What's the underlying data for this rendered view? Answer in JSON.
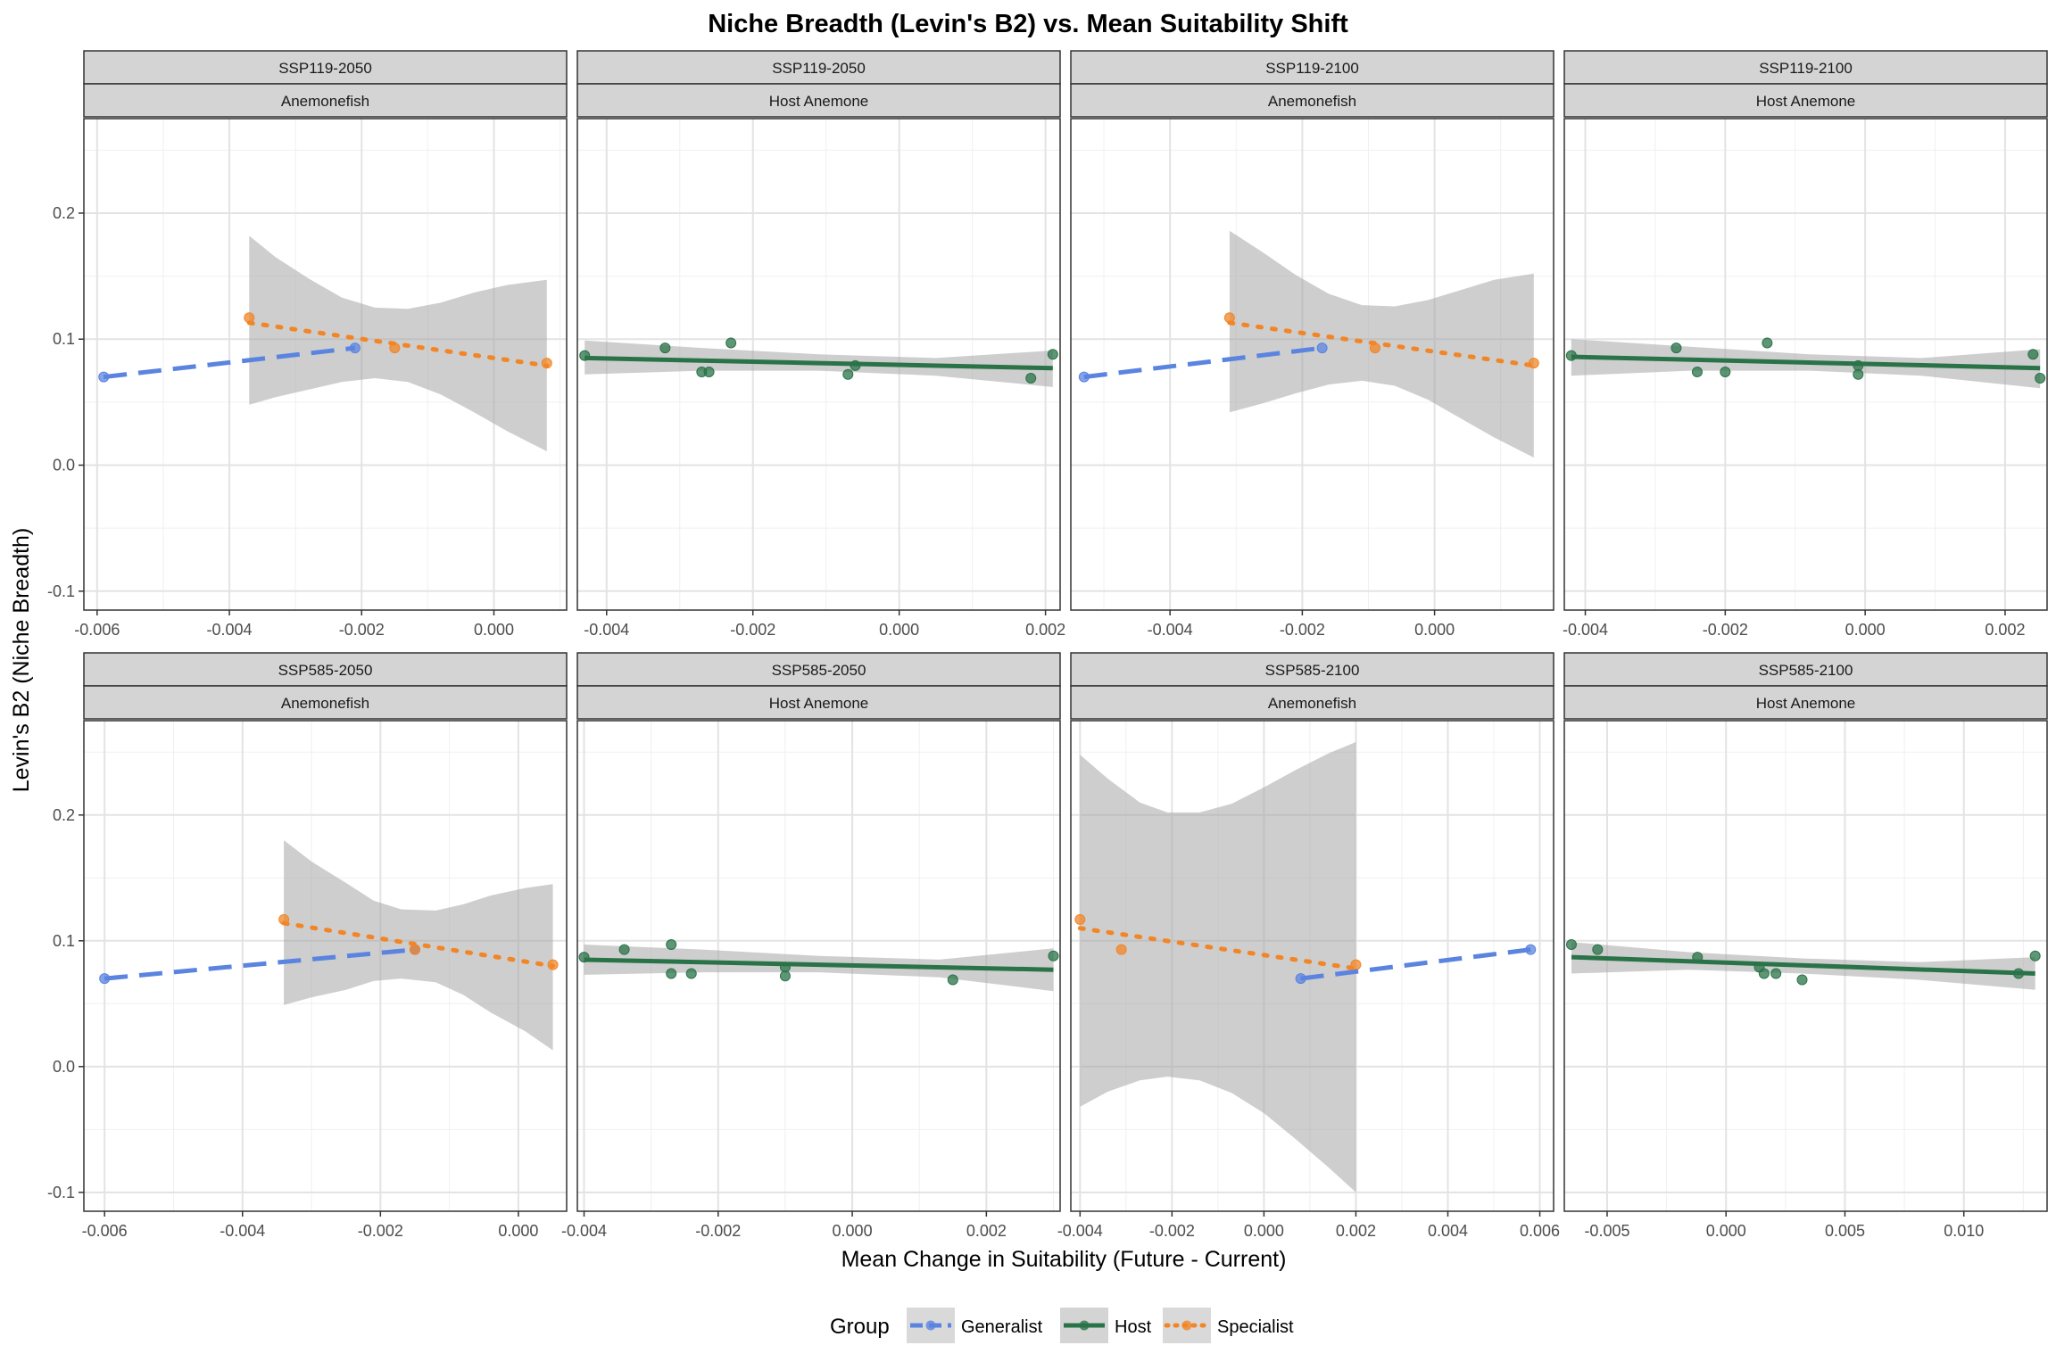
{
  "chart_data": {
    "type": "scatter",
    "title": "Niche Breadth (Levin's B2) vs. Mean Suitability Shift",
    "xlabel": "Mean Change in Suitability (Future - Current)",
    "ylabel": "Levin's B2 (Niche Breadth)",
    "ylim": [
      -0.115,
      0.275
    ],
    "yticks": [
      -0.1,
      0.0,
      0.1,
      0.2
    ],
    "ytick_labels": [
      "-0.1",
      "0.0",
      "0.1",
      "0.2"
    ],
    "grid": true,
    "legend": {
      "title": "Group",
      "position": "bottom",
      "entries": [
        {
          "name": "Generalist",
          "color": "#5b84e0",
          "linestyle": "dashed"
        },
        {
          "name": "Host",
          "color": "#2a7348",
          "linestyle": "solid"
        },
        {
          "name": "Specialist",
          "color": "#f28526",
          "linestyle": "dotted"
        }
      ]
    },
    "colors": {
      "Generalist": "#5b84e0",
      "Host": "#2a7348",
      "Specialist": "#f28526",
      "ribbon": "#a6a6a6",
      "strip": "#d4d4d4"
    },
    "panels": [
      {
        "scenario": "SSP119-2050",
        "group_label": "Anemonefish",
        "xlim": [
          -0.0062,
          0.0011
        ],
        "xticks": [
          -0.006,
          -0.004,
          -0.002,
          0.0
        ],
        "xtick_labels": [
          "-0.006",
          "-0.004",
          "-0.002",
          "0.000"
        ],
        "series": [
          {
            "name": "Generalist",
            "points": [
              [
                -0.0059,
                0.07
              ],
              [
                -0.0021,
                0.093
              ]
            ],
            "fit": [
              [
                -0.0059,
                0.07
              ],
              [
                -0.0021,
                0.093
              ]
            ]
          },
          {
            "name": "Specialist",
            "points": [
              [
                -0.0037,
                0.117
              ],
              [
                -0.0015,
                0.093
              ],
              [
                0.0008,
                0.081
              ]
            ],
            "fit": [
              [
                -0.0037,
                0.113
              ],
              [
                0.0008,
                0.079
              ]
            ],
            "band": {
              "x": [
                -0.0037,
                -0.0033,
                -0.0028,
                -0.0023,
                -0.0018,
                -0.0013,
                -0.0008,
                -0.0003,
                0.0002,
                0.0008
              ],
              "lower": [
                0.048,
                0.054,
                0.06,
                0.066,
                0.069,
                0.066,
                0.056,
                0.042,
                0.027,
                0.011
              ],
              "upper": [
                0.182,
                0.165,
                0.148,
                0.133,
                0.125,
                0.124,
                0.129,
                0.137,
                0.143,
                0.147
              ]
            }
          }
        ]
      },
      {
        "scenario": "SSP119-2050",
        "group_label": "Host Anemone",
        "xlim": [
          -0.0044,
          0.0022
        ],
        "xticks": [
          -0.004,
          -0.002,
          0.0,
          0.002
        ],
        "xtick_labels": [
          "-0.004",
          "-0.002",
          "0.000",
          "0.002"
        ],
        "series": [
          {
            "name": "Host",
            "points": [
              [
                -0.0043,
                0.087
              ],
              [
                -0.0032,
                0.093
              ],
              [
                -0.0027,
                0.074
              ],
              [
                -0.0026,
                0.074
              ],
              [
                -0.0023,
                0.097
              ],
              [
                -0.0007,
                0.072
              ],
              [
                -0.0006,
                0.079
              ],
              [
                0.0018,
                0.069
              ],
              [
                0.0021,
                0.088
              ]
            ],
            "fit": [
              [
                -0.0043,
                0.085
              ],
              [
                0.0021,
                0.077
              ]
            ],
            "band": {
              "x": [
                -0.0043,
                -0.0027,
                -0.0011,
                0.0005,
                0.0021
              ],
              "lower": [
                0.072,
                0.075,
                0.075,
                0.071,
                0.062
              ],
              "upper": [
                0.099,
                0.093,
                0.088,
                0.085,
                0.091
              ]
            }
          }
        ]
      },
      {
        "scenario": "SSP119-2100",
        "group_label": "Anemonefish",
        "xlim": [
          -0.0055,
          0.0018
        ],
        "xticks": [
          -0.004,
          -0.002,
          0.0
        ],
        "xtick_labels": [
          "-0.004",
          "-0.002",
          "0.000"
        ],
        "series": [
          {
            "name": "Generalist",
            "points": [
              [
                -0.0053,
                0.07
              ],
              [
                -0.0017,
                0.093
              ]
            ],
            "fit": [
              [
                -0.0053,
                0.07
              ],
              [
                -0.0017,
                0.093
              ]
            ]
          },
          {
            "name": "Specialist",
            "points": [
              [
                -0.0031,
                0.117
              ],
              [
                -0.0009,
                0.093
              ],
              [
                0.0015,
                0.081
              ]
            ],
            "fit": [
              [
                -0.0031,
                0.113
              ],
              [
                0.0015,
                0.079
              ]
            ],
            "band": {
              "x": [
                -0.0031,
                -0.0026,
                -0.0021,
                -0.0016,
                -0.0011,
                -0.0006,
                -0.0001,
                0.0004,
                0.0009,
                0.0015
              ],
              "lower": [
                0.042,
                0.049,
                0.057,
                0.064,
                0.067,
                0.063,
                0.052,
                0.037,
                0.022,
                0.006
              ],
              "upper": [
                0.186,
                0.169,
                0.151,
                0.136,
                0.127,
                0.126,
                0.131,
                0.139,
                0.147,
                0.152
              ]
            }
          }
        ]
      },
      {
        "scenario": "SSP119-2100",
        "group_label": "Host Anemone",
        "xlim": [
          -0.0043,
          0.0026
        ],
        "xticks": [
          -0.004,
          -0.002,
          0.0,
          0.002
        ],
        "xtick_labels": [
          "-0.004",
          "-0.002",
          "0.000",
          "0.002"
        ],
        "series": [
          {
            "name": "Host",
            "points": [
              [
                -0.0042,
                0.087
              ],
              [
                -0.0027,
                0.093
              ],
              [
                -0.0024,
                0.074
              ],
              [
                -0.002,
                0.074
              ],
              [
                -0.0014,
                0.097
              ],
              [
                -0.0001,
                0.072
              ],
              [
                -0.0001,
                0.079
              ],
              [
                0.0024,
                0.088
              ],
              [
                0.0025,
                0.069
              ]
            ],
            "fit": [
              [
                -0.0042,
                0.086
              ],
              [
                0.0025,
                0.077
              ]
            ],
            "band": {
              "x": [
                -0.0042,
                -0.0025,
                -0.0008,
                0.0008,
                0.0025
              ],
              "lower": [
                0.071,
                0.075,
                0.075,
                0.071,
                0.061
              ],
              "upper": [
                0.1,
                0.094,
                0.088,
                0.085,
                0.092
              ]
            }
          }
        ]
      },
      {
        "scenario": "SSP585-2050",
        "group_label": "Anemonefish",
        "xlim": [
          -0.0063,
          0.0007
        ],
        "xticks": [
          -0.006,
          -0.004,
          -0.002,
          0.0
        ],
        "xtick_labels": [
          "-0.006",
          "-0.004",
          "-0.002",
          "0.000"
        ],
        "series": [
          {
            "name": "Generalist",
            "points": [
              [
                -0.006,
                0.07
              ],
              [
                -0.0015,
                0.093
              ]
            ],
            "fit": [
              [
                -0.006,
                0.07
              ],
              [
                -0.0015,
                0.093
              ]
            ]
          },
          {
            "name": "Specialist",
            "points": [
              [
                -0.0034,
                0.117
              ],
              [
                -0.0015,
                0.093
              ],
              [
                0.0005,
                0.081
              ]
            ],
            "fit": [
              [
                -0.0034,
                0.114
              ],
              [
                0.0005,
                0.08
              ]
            ],
            "band": {
              "x": [
                -0.0034,
                -0.003,
                -0.0025,
                -0.0021,
                -0.0017,
                -0.0012,
                -0.0008,
                -0.0004,
                0.0001,
                0.0005
              ],
              "lower": [
                0.049,
                0.055,
                0.061,
                0.068,
                0.07,
                0.067,
                0.057,
                0.043,
                0.028,
                0.013
              ],
              "upper": [
                0.18,
                0.163,
                0.146,
                0.132,
                0.125,
                0.124,
                0.129,
                0.136,
                0.142,
                0.145
              ]
            }
          }
        ]
      },
      {
        "scenario": "SSP585-2050",
        "group_label": "Host Anemone",
        "xlim": [
          -0.0041,
          0.0031
        ],
        "xticks": [
          -0.004,
          -0.002,
          0.0,
          0.002
        ],
        "xtick_labels": [
          "-0.004",
          "-0.002",
          "0.000",
          "0.002"
        ],
        "series": [
          {
            "name": "Host",
            "points": [
              [
                -0.004,
                0.087
              ],
              [
                -0.0034,
                0.093
              ],
              [
                -0.0027,
                0.074
              ],
              [
                -0.0027,
                0.097
              ],
              [
                -0.0024,
                0.074
              ],
              [
                -0.001,
                0.079
              ],
              [
                -0.001,
                0.072
              ],
              [
                0.0015,
                0.069
              ],
              [
                0.003,
                0.088
              ]
            ],
            "fit": [
              [
                -0.004,
                0.085
              ],
              [
                0.003,
                0.077
              ]
            ],
            "band": {
              "x": [
                -0.004,
                -0.0022,
                -0.0005,
                0.0013,
                0.003
              ],
              "lower": [
                0.073,
                0.075,
                0.075,
                0.071,
                0.06
              ],
              "upper": [
                0.097,
                0.093,
                0.088,
                0.085,
                0.094
              ]
            }
          }
        ]
      },
      {
        "scenario": "SSP585-2100",
        "group_label": "Anemonefish",
        "xlim": [
          -0.0042,
          0.0063
        ],
        "xticks": [
          -0.004,
          -0.002,
          0.0,
          0.002,
          0.004,
          0.006
        ],
        "xtick_labels": [
          "-0.004",
          "-0.002",
          "0.000",
          "0.002",
          "0.004",
          "0.006"
        ],
        "series": [
          {
            "name": "Generalist",
            "points": [
              [
                0.0008,
                0.07
              ],
              [
                0.0058,
                0.093
              ]
            ],
            "fit": [
              [
                0.0008,
                0.07
              ],
              [
                0.0058,
                0.093
              ]
            ]
          },
          {
            "name": "Specialist",
            "points": [
              [
                -0.004,
                0.117
              ],
              [
                -0.0031,
                0.093
              ],
              [
                0.002,
                0.081
              ]
            ],
            "fit": [
              [
                -0.004,
                0.11
              ],
              [
                0.002,
                0.078
              ]
            ],
            "band": {
              "x": [
                -0.004,
                -0.0034,
                -0.0027,
                -0.0021,
                -0.0014,
                -0.0007,
                0.0,
                0.0007,
                0.0014,
                0.002
              ],
              "lower": [
                -0.032,
                -0.02,
                -0.011,
                -0.008,
                -0.011,
                -0.021,
                -0.037,
                -0.058,
                -0.08,
                -0.1
              ],
              "upper": [
                0.248,
                0.229,
                0.21,
                0.202,
                0.202,
                0.209,
                0.222,
                0.236,
                0.249,
                0.258
              ]
            }
          }
        ]
      },
      {
        "scenario": "SSP585-2100",
        "group_label": "Host Anemone",
        "xlim": [
          -0.0068,
          0.0135
        ],
        "xticks": [
          -0.005,
          0.0,
          0.005,
          0.01
        ],
        "xtick_labels": [
          "-0.005",
          "0.000",
          "0.005",
          "0.010"
        ],
        "series": [
          {
            "name": "Host",
            "points": [
              [
                -0.0065,
                0.097
              ],
              [
                -0.0054,
                0.093
              ],
              [
                -0.0012,
                0.087
              ],
              [
                0.0014,
                0.079
              ],
              [
                0.0016,
                0.074
              ],
              [
                0.0021,
                0.074
              ],
              [
                0.0032,
                0.069
              ],
              [
                0.0123,
                0.074
              ],
              [
                0.013,
                0.088
              ]
            ],
            "fit": [
              [
                -0.0065,
                0.087
              ],
              [
                0.013,
                0.074
              ]
            ],
            "band": {
              "x": [
                -0.0065,
                -0.0016,
                0.0032,
                0.0081,
                0.013
              ],
              "lower": [
                0.074,
                0.077,
                0.074,
                0.069,
                0.061
              ],
              "upper": [
                0.099,
                0.091,
                0.086,
                0.083,
                0.087
              ]
            }
          }
        ]
      }
    ]
  }
}
